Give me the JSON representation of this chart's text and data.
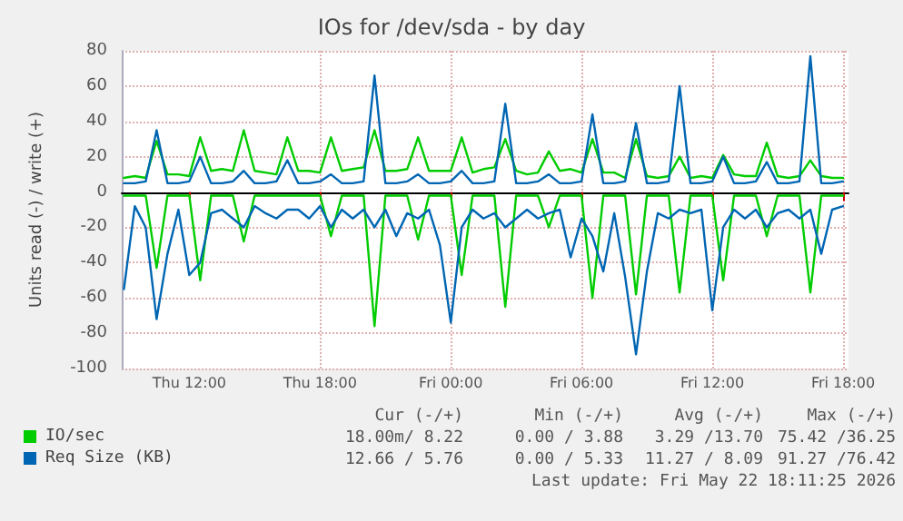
{
  "chart_data": {
    "type": "line",
    "title": "IOs for /dev/sda - by day",
    "ylabel": "Units read (-) / write (+)",
    "x": [
      "2026-05-21T09:00",
      "2026-05-21T09:30",
      "2026-05-21T10:00",
      "2026-05-21T10:30",
      "2026-05-21T11:00",
      "2026-05-21T11:30",
      "2026-05-21T12:00",
      "2026-05-21T12:30",
      "2026-05-21T13:00",
      "2026-05-21T13:30",
      "2026-05-21T14:00",
      "2026-05-21T14:30",
      "2026-05-21T15:00",
      "2026-05-21T15:30",
      "2026-05-21T16:00",
      "2026-05-21T16:30",
      "2026-05-21T17:00",
      "2026-05-21T17:30",
      "2026-05-21T18:00",
      "2026-05-21T18:30",
      "2026-05-21T19:00",
      "2026-05-21T19:30",
      "2026-05-21T20:00",
      "2026-05-21T20:30",
      "2026-05-21T21:00",
      "2026-05-21T21:30",
      "2026-05-21T22:00",
      "2026-05-21T22:30",
      "2026-05-21T23:00",
      "2026-05-21T23:30",
      "2026-05-22T00:00",
      "2026-05-22T00:30",
      "2026-05-22T01:00",
      "2026-05-22T01:30",
      "2026-05-22T02:00",
      "2026-05-22T02:30",
      "2026-05-22T03:00",
      "2026-05-22T03:30",
      "2026-05-22T04:00",
      "2026-05-22T04:30",
      "2026-05-22T05:00",
      "2026-05-22T05:30",
      "2026-05-22T06:00",
      "2026-05-22T06:30",
      "2026-05-22T07:00",
      "2026-05-22T07:30",
      "2026-05-22T08:00",
      "2026-05-22T08:30",
      "2026-05-22T09:00",
      "2026-05-22T09:30",
      "2026-05-22T10:00",
      "2026-05-22T10:30",
      "2026-05-22T11:00",
      "2026-05-22T11:30",
      "2026-05-22T12:00",
      "2026-05-22T12:30",
      "2026-05-22T13:00",
      "2026-05-22T13:30",
      "2026-05-22T14:00",
      "2026-05-22T14:30",
      "2026-05-22T15:00",
      "2026-05-22T15:30",
      "2026-05-22T16:00",
      "2026-05-22T16:30",
      "2026-05-22T17:00",
      "2026-05-22T17:30",
      "2026-05-22T18:00"
    ],
    "xlim": [
      "2026-05-21T08:54",
      "2026-05-22T18:15"
    ],
    "xticks": [
      {
        "value": "2026-05-21T12:00",
        "label": "Thu 12:00"
      },
      {
        "value": "2026-05-21T18:00",
        "label": "Thu 18:00"
      },
      {
        "value": "2026-05-22T00:00",
        "label": "Fri 00:00"
      },
      {
        "value": "2026-05-22T06:00",
        "label": "Fri 06:00"
      },
      {
        "value": "2026-05-22T12:00",
        "label": "Fri 12:00"
      },
      {
        "value": "2026-05-22T18:00",
        "label": "Fri 18:00"
      }
    ],
    "ylim": [
      -100,
      80
    ],
    "yticks": [
      -100,
      -80,
      -60,
      -40,
      -20,
      0,
      20,
      40,
      60,
      80
    ],
    "grid": true,
    "legend": "bottom left",
    "marker": "none",
    "line_style": "solid",
    "series": [
      {
        "name": "IO/sec",
        "color": "#00cc00",
        "values": [
          8,
          9,
          8,
          29,
          10,
          10,
          9,
          31,
          12,
          13,
          12,
          35,
          12,
          11,
          10,
          31,
          12,
          12,
          11,
          31,
          12,
          13,
          14,
          35,
          12,
          12,
          13,
          31,
          12,
          12,
          12,
          31,
          11,
          13,
          14,
          30,
          12,
          10,
          11,
          23,
          12,
          13,
          11,
          30,
          11,
          11,
          8,
          30,
          9,
          8,
          9,
          20,
          8,
          9,
          8,
          21,
          10,
          9,
          9,
          28,
          9,
          8,
          9,
          18,
          9,
          8,
          8
        ]
      },
      {
        "name": "Req Size (KB)",
        "color": "#0066b3",
        "values": [
          5,
          5,
          6,
          35,
          5,
          5,
          6,
          20,
          5,
          5,
          6,
          12,
          5,
          5,
          6,
          18,
          5,
          5,
          6,
          10,
          5,
          5,
          6,
          66,
          5,
          5,
          6,
          10,
          5,
          5,
          6,
          12,
          5,
          5,
          6,
          50,
          5,
          5,
          6,
          10,
          5,
          5,
          6,
          44,
          5,
          5,
          6,
          39,
          5,
          5,
          6,
          60,
          5,
          5,
          6,
          20,
          5,
          5,
          6,
          17,
          5,
          5,
          6,
          77,
          5,
          5,
          6
        ]
      },
      {
        "color": "#00cc00",
        "values": [
          -2,
          -2,
          -2,
          -43,
          -2,
          -2,
          -2,
          -50,
          -2,
          -2,
          -2,
          -28,
          -2,
          -2,
          -2,
          -2,
          -2,
          -2,
          -2,
          -25,
          -2,
          -2,
          -2,
          -76,
          -2,
          -2,
          -2,
          -27,
          -2,
          -2,
          -2,
          -47,
          -2,
          -2,
          -2,
          -65,
          -2,
          -2,
          -2,
          -20,
          -2,
          -2,
          -2,
          -60,
          -2,
          -2,
          -2,
          -58,
          -2,
          -2,
          -2,
          -57,
          -2,
          -2,
          -2,
          -50,
          -2,
          -2,
          -2,
          -25,
          -2,
          -2,
          -2,
          -57,
          -2,
          -2,
          -2
        ]
      },
      {
        "color": "#0066b3",
        "values": [
          -55,
          -8,
          -20,
          -72,
          -35,
          -10,
          -47,
          -40,
          -12,
          -10,
          -15,
          -20,
          -8,
          -12,
          -15,
          -10,
          -10,
          -15,
          -8,
          -20,
          -10,
          -15,
          -10,
          -20,
          -10,
          -25,
          -12,
          -15,
          -10,
          -30,
          -74,
          -20,
          -10,
          -15,
          -12,
          -20,
          -15,
          -10,
          -15,
          -12,
          -10,
          -37,
          -15,
          -25,
          -45,
          -12,
          -48,
          -92,
          -45,
          -12,
          -15,
          -10,
          -12,
          -10,
          -67,
          -20,
          -10,
          -15,
          -10,
          -20,
          -12,
          -10,
          -15,
          -10,
          -35,
          -10,
          -8
        ]
      }
    ],
    "annotations": [
      "Cur (-/+)",
      "Min (-/+)",
      "Avg (-/+)",
      "Max (-/+)",
      "18.00m/ 8.22",
      "0.00 / 3.88",
      "3.29 /13.70",
      "75.42 /36.25",
      "12.66 / 5.76",
      "0.00 / 5.33",
      "11.27 / 8.09",
      "91.27 /76.42",
      "Last update: Fri May 22 18:11:25 2026"
    ]
  }
}
